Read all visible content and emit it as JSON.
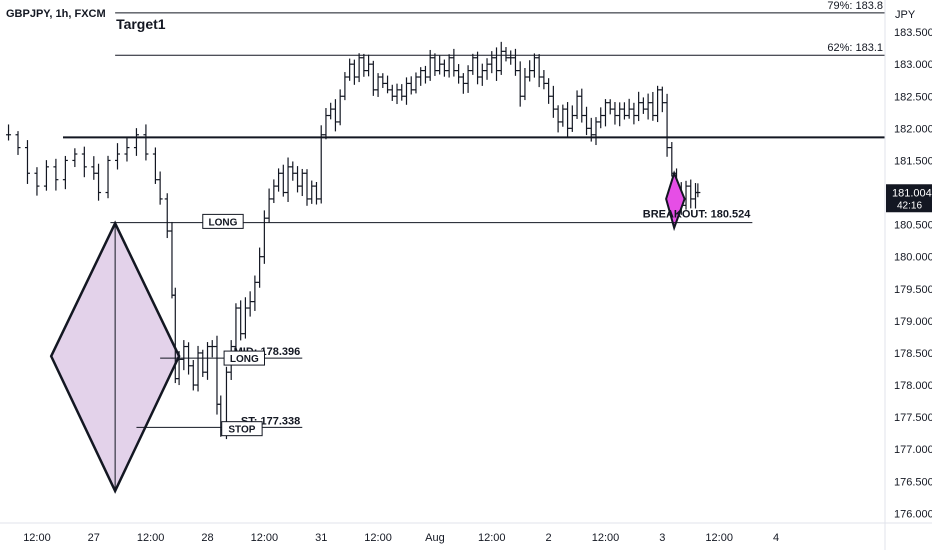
{
  "header": {
    "symbol_title": "GBPJPY, 1h, FXCM"
  },
  "currency_label": "JPY",
  "chart_data": {
    "type": "candlestick",
    "title": "GBPJPY, 1h, FXCM",
    "ylim": [
      175.85,
      184.0
    ],
    "y_ticks": [
      "183.500",
      "183.000",
      "182.500",
      "182.000",
      "181.500",
      "181.000",
      "180.500",
      "180.000",
      "179.500",
      "179.000",
      "178.500",
      "178.000",
      "177.500",
      "177.000",
      "176.500",
      "176.000"
    ],
    "x_ticks": [
      {
        "label": "12:00",
        "t": 12
      },
      {
        "label": "27",
        "t": 24
      },
      {
        "label": "12:00",
        "t": 36
      },
      {
        "label": "28",
        "t": 48
      },
      {
        "label": "12:00",
        "t": 60
      },
      {
        "label": "31",
        "t": 72
      },
      {
        "label": "12:00",
        "t": 84
      },
      {
        "label": "Aug",
        "t": 96
      },
      {
        "label": "12:00",
        "t": 108
      },
      {
        "label": "2",
        "t": 120
      },
      {
        "label": "12:00",
        "t": 132
      },
      {
        "label": "3",
        "t": 144
      },
      {
        "label": "12:00",
        "t": 156
      },
      {
        "label": "4",
        "t": 168
      }
    ],
    "xlim": [
      4.2,
      191
    ],
    "price_path": [
      [
        4.4,
        181.9
      ],
      [
        6,
        181.9
      ],
      [
        8,
        181.7
      ],
      [
        10,
        181.3
      ],
      [
        12,
        181.1
      ],
      [
        14,
        181.4
      ],
      [
        16,
        181.2
      ],
      [
        18,
        181.5
      ],
      [
        20,
        181.6
      ],
      [
        22,
        181.4
      ],
      [
        24,
        181.3
      ],
      [
        25,
        181.0
      ],
      [
        27,
        181.5
      ],
      [
        29,
        181.6
      ],
      [
        31,
        181.7
      ],
      [
        33,
        181.9
      ],
      [
        35,
        181.6
      ],
      [
        37,
        181.2
      ],
      [
        38,
        180.9
      ],
      [
        39.5,
        180.4
      ],
      [
        40.5,
        179.4
      ],
      [
        41.2,
        178.1
      ],
      [
        42,
        178.4
      ],
      [
        43,
        178.6
      ],
      [
        44,
        178.3
      ],
      [
        45,
        178.0
      ],
      [
        46,
        178.5
      ],
      [
        47,
        178.2
      ],
      [
        48,
        178.6
      ],
      [
        49,
        178.6
      ],
      [
        50,
        177.7
      ],
      [
        50.8,
        177.3
      ],
      [
        52,
        178.2
      ],
      [
        53,
        178.6
      ],
      [
        54,
        179.2
      ],
      [
        55,
        178.8
      ],
      [
        56,
        179.2
      ],
      [
        57,
        179.3
      ],
      [
        58,
        179.6
      ],
      [
        59,
        180.0
      ],
      [
        60,
        180.6
      ],
      [
        61,
        180.9
      ],
      [
        62,
        181.1
      ],
      [
        63,
        181.3
      ],
      [
        64,
        181.0
      ],
      [
        65,
        181.4
      ],
      [
        66,
        181.3
      ],
      [
        67,
        181.1
      ],
      [
        68,
        181.3
      ],
      [
        69,
        180.9
      ],
      [
        70,
        181.1
      ],
      [
        71,
        180.9
      ],
      [
        72,
        181.9
      ],
      [
        73,
        182.2
      ],
      [
        74,
        182.3
      ],
      [
        75,
        182.1
      ],
      [
        76,
        182.5
      ],
      [
        77,
        182.8
      ],
      [
        78,
        183.0
      ],
      [
        79,
        182.8
      ],
      [
        80,
        183.1
      ],
      [
        81,
        182.9
      ],
      [
        82,
        183.0
      ],
      [
        83,
        182.6
      ],
      [
        84,
        182.8
      ],
      [
        85,
        182.7
      ],
      [
        86,
        182.6
      ],
      [
        87,
        182.5
      ],
      [
        88,
        182.6
      ],
      [
        89,
        182.5
      ],
      [
        90,
        182.7
      ],
      [
        91,
        182.6
      ],
      [
        92,
        182.8
      ],
      [
        93,
        182.9
      ],
      [
        94,
        182.8
      ],
      [
        95,
        183.1
      ],
      [
        96,
        182.9
      ],
      [
        97,
        183.0
      ],
      [
        98,
        182.9
      ],
      [
        99,
        183.1
      ],
      [
        100,
        182.9
      ],
      [
        101,
        182.8
      ],
      [
        102,
        182.7
      ],
      [
        103,
        182.9
      ],
      [
        104,
        183.1
      ],
      [
        105,
        182.8
      ],
      [
        106,
        182.9
      ],
      [
        107,
        183.0
      ],
      [
        108,
        183.1
      ],
      [
        109,
        182.9
      ],
      [
        110,
        183.2
      ],
      [
        111,
        183.1
      ],
      [
        112,
        183.1
      ],
      [
        113,
        182.9
      ],
      [
        114,
        182.5
      ],
      [
        115,
        182.8
      ],
      [
        116,
        182.9
      ],
      [
        117,
        183.1
      ],
      [
        118,
        182.8
      ],
      [
        119,
        182.7
      ],
      [
        120,
        182.5
      ],
      [
        121,
        182.3
      ],
      [
        122,
        182.1
      ],
      [
        123,
        182.3
      ],
      [
        124,
        182.0
      ],
      [
        125,
        182.2
      ],
      [
        126,
        182.5
      ],
      [
        127,
        182.2
      ],
      [
        128,
        182.0
      ],
      [
        129,
        181.9
      ],
      [
        130,
        182.1
      ],
      [
        131,
        182.2
      ],
      [
        132,
        182.4
      ],
      [
        133,
        182.3
      ],
      [
        134,
        182.2
      ],
      [
        135,
        182.3
      ],
      [
        136,
        182.2
      ],
      [
        137,
        182.3
      ],
      [
        138,
        182.2
      ],
      [
        139,
        182.4
      ],
      [
        140,
        182.3
      ],
      [
        141,
        182.4
      ],
      [
        142,
        182.2
      ],
      [
        143,
        182.6
      ],
      [
        144,
        182.4
      ],
      [
        145,
        181.7
      ],
      [
        146,
        181.3
      ],
      [
        147,
        181.0
      ],
      [
        148,
        180.8
      ],
      [
        149,
        181.1
      ],
      [
        150,
        180.9
      ],
      [
        151,
        181.0
      ],
      [
        151.5,
        181.0
      ]
    ],
    "levels": [
      {
        "name": "fib-79",
        "price": 183.8,
        "label": "79%: 183.8",
        "x_from": 28.5
      },
      {
        "name": "fib-62",
        "price": 183.14,
        "label": "62%: 183.1",
        "x_from": 28.5
      },
      {
        "name": "resistance",
        "price": 181.86,
        "label": "",
        "x_from": 17.5
      },
      {
        "name": "breakout",
        "price": 180.53,
        "label": "BREAKOUT: 180.524",
        "x_from": 27.5,
        "x_to": 163
      },
      {
        "name": "mid",
        "price": 178.42,
        "label": "MID: 178.396",
        "x_from": 38,
        "x_to": 68
      },
      {
        "name": "stop",
        "price": 177.34,
        "label": "ST: 177.338",
        "x_from": 33,
        "x_to": 68
      }
    ],
    "diamond": {
      "left": [
        15,
        178.45
      ],
      "top": [
        28.5,
        180.52
      ],
      "right": [
        42,
        178.45
      ],
      "bottom": [
        28.5,
        176.35
      ]
    },
    "small_diamond": {
      "left": [
        144.8,
        180.9
      ],
      "top": [
        146.5,
        181.3
      ],
      "right": [
        148.7,
        180.9
      ],
      "bottom": [
        146.5,
        180.45
      ]
    },
    "annotations": [
      {
        "text": "Target1",
        "t": 28.7,
        "price": 183.55
      },
      {
        "text": "LONG",
        "t": 47,
        "price": 180.55,
        "boxed": true
      },
      {
        "text": "LONG",
        "t": 51.5,
        "price": 178.42,
        "boxed": true
      },
      {
        "text": "STOP",
        "t": 51,
        "price": 177.32,
        "boxed": true
      }
    ],
    "last_price": {
      "price": 181.004,
      "label": "181.004",
      "countdown": "42:16",
      "color": "#131722"
    },
    "colors": {
      "candle": "#131722",
      "diamond_fill": "#e3d2ea",
      "small_diamond_fill": "#e64ee6",
      "line": "#131722"
    }
  }
}
